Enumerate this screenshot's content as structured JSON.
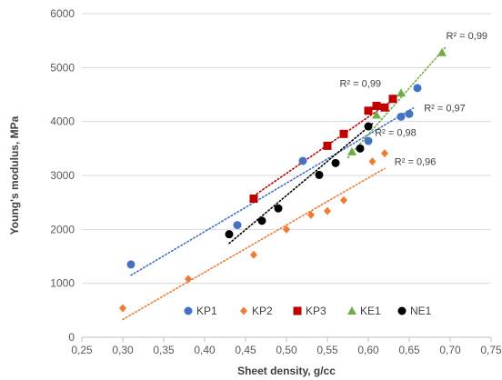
{
  "chart_data": {
    "type": "scatter",
    "xlabel": "Sheet density, g/cc",
    "ylabel": "Young's modulus, MPa",
    "xlim": [
      0.25,
      0.75
    ],
    "ylim": [
      0,
      6000
    ],
    "x_ticks": [
      "0,25",
      "0,30",
      "0,35",
      "0,40",
      "0,45",
      "0,50",
      "0,55",
      "0,60",
      "0,65",
      "0,70",
      "0,75"
    ],
    "y_ticks": [
      "0",
      "1000",
      "2000",
      "3000",
      "4000",
      "5000",
      "6000"
    ],
    "grid": "horizontal",
    "legend_position": "bottom-center",
    "series": [
      {
        "name": "KP1",
        "marker": "circle",
        "color": "#4472C4",
        "r2": "R² = 0,97",
        "points": [
          [
            0.31,
            1350
          ],
          [
            0.44,
            2080
          ],
          [
            0.52,
            3270
          ],
          [
            0.6,
            3640
          ],
          [
            0.64,
            4090
          ],
          [
            0.65,
            4140
          ],
          [
            0.66,
            4620
          ]
        ],
        "trend": [
          [
            0.31,
            1150
          ],
          [
            0.655,
            4250
          ]
        ]
      },
      {
        "name": "KP2",
        "marker": "diamond",
        "color": "#ED7D31",
        "r2": "R² = 0,96",
        "points": [
          [
            0.3,
            540
          ],
          [
            0.38,
            1080
          ],
          [
            0.46,
            1530
          ],
          [
            0.5,
            2000
          ],
          [
            0.53,
            2270
          ],
          [
            0.55,
            2340
          ],
          [
            0.57,
            2540
          ],
          [
            0.605,
            3260
          ],
          [
            0.62,
            3410
          ]
        ],
        "trend": [
          [
            0.3,
            330
          ],
          [
            0.62,
            3130
          ]
        ]
      },
      {
        "name": "KP3",
        "marker": "square",
        "color": "#C00000",
        "r2": "R² = 0,99",
        "points": [
          [
            0.46,
            2570
          ],
          [
            0.55,
            3550
          ],
          [
            0.57,
            3770
          ],
          [
            0.6,
            4200
          ],
          [
            0.61,
            4290
          ],
          [
            0.62,
            4260
          ],
          [
            0.63,
            4420
          ]
        ],
        "trend": [
          [
            0.46,
            2620
          ],
          [
            0.635,
            4450
          ]
        ]
      },
      {
        "name": "KE1",
        "marker": "triangle",
        "color": "#70AD47",
        "r2": "R² = 0,99",
        "points": [
          [
            0.58,
            3440
          ],
          [
            0.61,
            4120
          ],
          [
            0.64,
            4530
          ],
          [
            0.69,
            5280
          ]
        ],
        "trend": [
          [
            0.575,
            3330
          ],
          [
            0.695,
            5390
          ]
        ]
      },
      {
        "name": "NE1",
        "marker": "circle",
        "color": "#000000",
        "r2": "R² = 0,98",
        "points": [
          [
            0.43,
            1910
          ],
          [
            0.47,
            2160
          ],
          [
            0.49,
            2390
          ],
          [
            0.54,
            3010
          ],
          [
            0.56,
            3230
          ],
          [
            0.59,
            3500
          ],
          [
            0.6,
            3910
          ]
        ],
        "trend": [
          [
            0.43,
            1740
          ],
          [
            0.605,
            3960
          ]
        ]
      }
    ],
    "annotations": [
      {
        "text": "R² = 0,99",
        "x": 0.695,
        "y": 5530
      },
      {
        "text": "R² = 0,99",
        "x": 0.565,
        "y": 4640
      },
      {
        "text": "R² = 0,97",
        "x": 0.668,
        "y": 4190
      },
      {
        "text": "R² = 0,98",
        "x": 0.608,
        "y": 3730
      },
      {
        "text": "R² = 0,96",
        "x": 0.632,
        "y": 3190
      }
    ]
  }
}
